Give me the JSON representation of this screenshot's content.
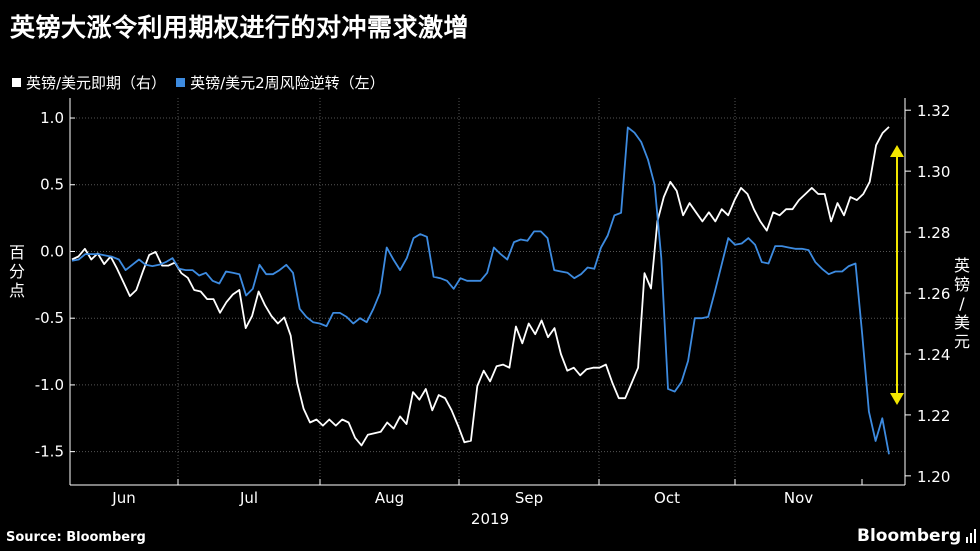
{
  "title": "英镑大涨令利用期权进行的对冲需求激增",
  "legend": [
    {
      "label": "英镑/美元即期（右）",
      "color": "#ffffff"
    },
    {
      "label": "英镑/美元2周风险逆转（左）",
      "color": "#3d8be0"
    }
  ],
  "source": "Source: Bloomberg",
  "brand": "Bloomberg",
  "chart_data": {
    "type": "line",
    "title": "英镑大涨令利用期权进行的对冲需求激增",
    "ylabel_left": "百分点",
    "ylabel_right": "英镑/美元",
    "xlabel": "2019",
    "x_ticks": [
      "Jun",
      "Jul",
      "Aug",
      "Sep",
      "Oct",
      "Nov"
    ],
    "year_label": "2019",
    "y_left_ticks": [
      "1.0",
      "0.5",
      "0.0",
      "-0.5",
      "-1.0",
      "-1.5"
    ],
    "y_right_ticks": [
      "1.32",
      "1.30",
      "1.28",
      "1.26",
      "1.24",
      "1.22",
      "1.20"
    ],
    "ylim_left": [
      -1.75,
      1.15
    ],
    "ylim_right": [
      1.197,
      1.324
    ],
    "grid": true,
    "series": [
      {
        "name": "英镑/美元即期（右）",
        "axis": "right",
        "color": "#ffffff",
        "values": [
          1.271,
          1.272,
          1.2745,
          1.271,
          1.273,
          1.2695,
          1.272,
          1.268,
          1.2635,
          1.259,
          1.261,
          1.267,
          1.2725,
          1.2735,
          1.269,
          1.269,
          1.27,
          1.2665,
          1.265,
          1.261,
          1.2605,
          1.258,
          1.258,
          1.2535,
          1.257,
          1.2595,
          1.261,
          1.2485,
          1.2525,
          1.2605,
          1.256,
          1.2525,
          1.25,
          1.252,
          1.246,
          1.2305,
          1.222,
          1.2175,
          1.2185,
          1.2165,
          1.2185,
          1.2165,
          1.2185,
          1.2175,
          1.2125,
          1.21,
          1.2135,
          1.214,
          1.2145,
          1.2175,
          1.2155,
          1.2195,
          1.217,
          1.2275,
          1.225,
          1.2285,
          1.2215,
          1.2265,
          1.2255,
          1.2215,
          1.2165,
          1.211,
          1.2115,
          1.2295,
          1.2345,
          1.231,
          1.236,
          1.2365,
          1.2355,
          1.249,
          1.2435,
          1.25,
          1.2465,
          1.251,
          1.2455,
          1.2485,
          1.24,
          1.2345,
          1.2355,
          1.233,
          1.235,
          1.2355,
          1.2355,
          1.2365,
          1.2305,
          1.2255,
          1.2255,
          1.2305,
          1.2355,
          1.2665,
          1.2615,
          1.2835,
          1.2915,
          1.2965,
          1.2935,
          1.2855,
          1.2895,
          1.2865,
          1.2835,
          1.2865,
          1.2835,
          1.2875,
          1.2855,
          1.2905,
          1.2945,
          1.2925,
          1.2875,
          1.2835,
          1.2805,
          1.2865,
          1.2855,
          1.2875,
          1.2875,
          1.2905,
          1.2925,
          1.2945,
          1.2925,
          1.2925,
          1.2835,
          1.2895,
          1.2855,
          1.2915,
          1.2905,
          1.2925,
          1.2965,
          1.3085,
          1.3125,
          1.3145
        ]
      },
      {
        "name": "英镑/美元2周风险逆转（左）",
        "axis": "left",
        "color": "#3d8be0",
        "values": [
          -0.07,
          -0.06,
          -0.02,
          -0.02,
          -0.02,
          -0.03,
          -0.04,
          -0.06,
          -0.14,
          -0.1,
          -0.06,
          -0.1,
          -0.11,
          -0.1,
          -0.08,
          -0.05,
          -0.13,
          -0.14,
          -0.14,
          -0.18,
          -0.16,
          -0.22,
          -0.24,
          -0.15,
          -0.16,
          -0.17,
          -0.33,
          -0.28,
          -0.1,
          -0.17,
          -0.17,
          -0.14,
          -0.1,
          -0.16,
          -0.43,
          -0.49,
          -0.53,
          -0.54,
          -0.56,
          -0.46,
          -0.46,
          -0.49,
          -0.54,
          -0.5,
          -0.53,
          -0.43,
          -0.31,
          0.03,
          -0.06,
          -0.14,
          -0.05,
          0.1,
          0.13,
          0.11,
          -0.19,
          -0.2,
          -0.22,
          -0.28,
          -0.2,
          -0.22,
          -0.22,
          -0.22,
          -0.16,
          0.03,
          -0.02,
          -0.06,
          0.07,
          0.09,
          0.08,
          0.15,
          0.15,
          0.1,
          -0.14,
          -0.15,
          -0.16,
          -0.2,
          -0.17,
          -0.12,
          -0.13,
          0.03,
          0.12,
          0.27,
          0.29,
          0.93,
          0.89,
          0.82,
          0.69,
          0.5,
          -0.05,
          -1.03,
          -1.05,
          -0.98,
          -0.82,
          -0.5,
          -0.5,
          -0.49,
          -0.3,
          -0.1,
          0.1,
          0.05,
          0.06,
          0.1,
          0.05,
          -0.08,
          -0.09,
          0.04,
          0.04,
          0.03,
          0.02,
          0.02,
          0.01,
          -0.08,
          -0.13,
          -0.17,
          -0.15,
          -0.15,
          -0.11,
          -0.09,
          -0.62,
          -1.2,
          -1.42,
          -1.25,
          -1.52
        ]
      }
    ]
  }
}
